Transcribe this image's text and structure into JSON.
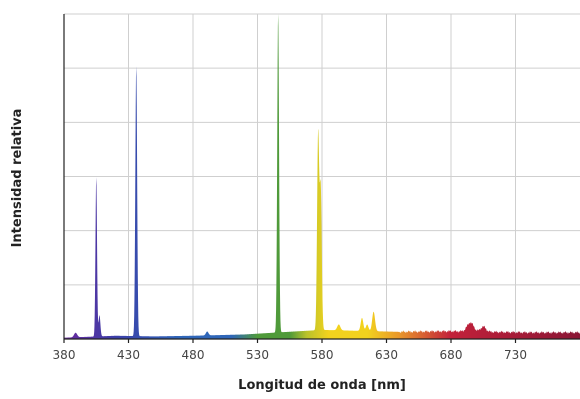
{
  "chart_data": {
    "type": "area",
    "title": "",
    "xlabel": "Longitud de onda [nm]",
    "ylabel": "Intensidad relativa",
    "x_ticks": [
      380,
      430,
      480,
      530,
      580,
      630,
      680,
      730
    ],
    "xlim": [
      380,
      780
    ],
    "ylim": [
      0,
      1
    ],
    "y_gridlines": 6,
    "grid": true,
    "legend": "none",
    "baseline": [
      [
        380,
        0.004
      ],
      [
        420,
        0.01
      ],
      [
        450,
        0.008
      ],
      [
        480,
        0.01
      ],
      [
        520,
        0.014
      ],
      [
        545,
        0.02
      ],
      [
        580,
        0.028
      ],
      [
        640,
        0.022
      ],
      [
        680,
        0.024
      ],
      [
        740,
        0.02
      ],
      [
        780,
        0.02
      ]
    ],
    "peaks": [
      {
        "x": 389,
        "height": 0.014,
        "width": 1.2
      },
      {
        "x": 405,
        "height": 0.49,
        "width": 0.6
      },
      {
        "x": 407.5,
        "height": 0.065,
        "width": 0.7
      },
      {
        "x": 436,
        "height": 0.83,
        "width": 0.7
      },
      {
        "x": 491,
        "height": 0.012,
        "width": 1.0
      },
      {
        "x": 546,
        "height": 0.98,
        "width": 0.7
      },
      {
        "x": 577,
        "height": 0.6,
        "width": 0.8
      },
      {
        "x": 579,
        "height": 0.43,
        "width": 0.8
      },
      {
        "x": 593,
        "height": 0.018,
        "width": 1.2
      },
      {
        "x": 611,
        "height": 0.04,
        "width": 1.0
      },
      {
        "x": 615,
        "height": 0.02,
        "width": 1.0
      },
      {
        "x": 620,
        "height": 0.06,
        "width": 1.1
      },
      {
        "x": 695,
        "height": 0.028,
        "width": 2.5
      },
      {
        "x": 705,
        "height": 0.016,
        "width": 2.0
      }
    ],
    "colors": {
      "violet": "#6a2a9e",
      "indigo": "#3b3fa8",
      "blue": "#2f66b8",
      "green": "#4f9a3a",
      "yellow_green": "#b9c22a",
      "yellow": "#f2d21e",
      "orange": "#e9962a",
      "red": "#c2213a",
      "deep_red": "#8a1635"
    }
  }
}
